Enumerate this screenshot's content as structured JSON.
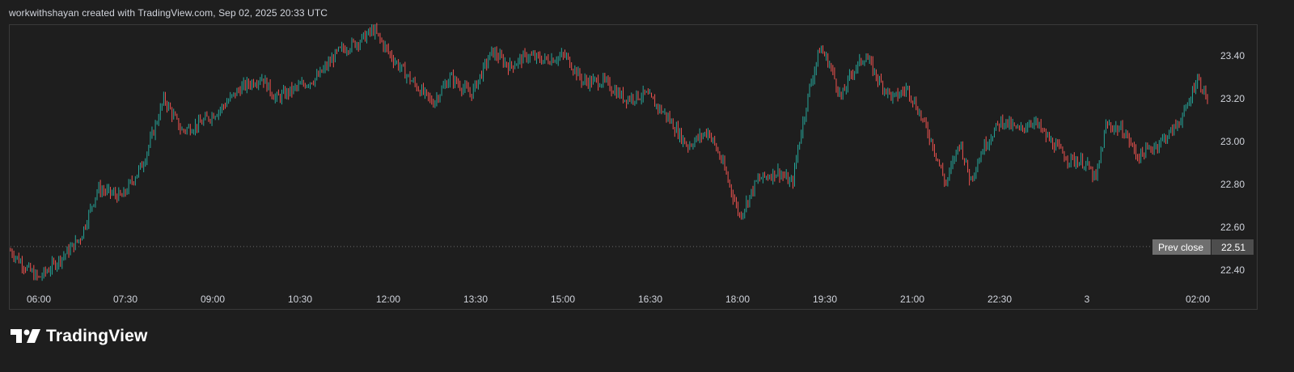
{
  "header": {
    "attribution": "workwithshayan created with TradingView.com, Sep 02, 2025 20:33 UTC"
  },
  "brand": {
    "name": "TradingView"
  },
  "colors": {
    "background": "#1e1e1e",
    "up": "#26a69a",
    "down": "#ef5350",
    "prev_close_line": "#6b6b6b",
    "prev_close_badge": "#6f6f6f"
  },
  "chart_data": {
    "type": "candlestick",
    "x_tick_labels": [
      "06:00",
      "07:30",
      "09:00",
      "10:30",
      "12:00",
      "13:30",
      "15:00",
      "16:30",
      "18:00",
      "19:30",
      "21:00",
      "22:30",
      "3",
      "02:00"
    ],
    "y_tick_labels": [
      "23.40",
      "23.20",
      "23.00",
      "22.80",
      "22.60",
      "22.40"
    ],
    "y_ticks": [
      23.4,
      23.2,
      23.0,
      22.8,
      22.6,
      22.4
    ],
    "ylim": [
      22.34,
      23.55
    ],
    "prev_close": {
      "label": "Prev close",
      "value": 22.51,
      "value_text": "22.51"
    },
    "price_path": [
      [
        0,
        22.49
      ],
      [
        0.4,
        22.42
      ],
      [
        0.8,
        22.36
      ],
      [
        1.2,
        22.42
      ],
      [
        1.6,
        22.48
      ],
      [
        2.0,
        22.55
      ],
      [
        2.5,
        22.78
      ],
      [
        3.2,
        22.74
      ],
      [
        3.8,
        22.9
      ],
      [
        4.4,
        23.2
      ],
      [
        4.9,
        23.05
      ],
      [
        5.4,
        23.08
      ],
      [
        6.0,
        23.15
      ],
      [
        6.6,
        23.25
      ],
      [
        7.2,
        23.3
      ],
      [
        7.6,
        23.2
      ],
      [
        8.2,
        23.25
      ],
      [
        8.8,
        23.3
      ],
      [
        9.4,
        23.42
      ],
      [
        10.0,
        23.47
      ],
      [
        10.4,
        23.52
      ],
      [
        10.9,
        23.4
      ],
      [
        11.5,
        23.28
      ],
      [
        12.1,
        23.18
      ],
      [
        12.6,
        23.3
      ],
      [
        13.2,
        23.22
      ],
      [
        13.8,
        23.42
      ],
      [
        14.3,
        23.35
      ],
      [
        14.8,
        23.4
      ],
      [
        15.3,
        23.38
      ],
      [
        15.9,
        23.4
      ],
      [
        16.4,
        23.28
      ],
      [
        17.0,
        23.28
      ],
      [
        17.6,
        23.2
      ],
      [
        18.2,
        23.22
      ],
      [
        18.8,
        23.12
      ],
      [
        19.4,
        22.98
      ],
      [
        20.0,
        23.05
      ],
      [
        20.4,
        22.9
      ],
      [
        20.9,
        22.65
      ],
      [
        21.4,
        22.82
      ],
      [
        22.0,
        22.86
      ],
      [
        22.4,
        22.8
      ],
      [
        22.6,
        23.0
      ],
      [
        22.9,
        23.25
      ],
      [
        23.2,
        23.44
      ],
      [
        23.5,
        23.35
      ],
      [
        23.8,
        23.2
      ],
      [
        24.1,
        23.32
      ],
      [
        24.5,
        23.4
      ],
      [
        24.9,
        23.28
      ],
      [
        25.3,
        23.2
      ],
      [
        25.7,
        23.25
      ],
      [
        26.0,
        23.15
      ],
      [
        26.4,
        23.0
      ],
      [
        26.8,
        22.8
      ],
      [
        27.2,
        23.0
      ],
      [
        27.5,
        22.82
      ],
      [
        27.9,
        22.98
      ],
      [
        28.4,
        23.1
      ],
      [
        28.9,
        23.05
      ],
      [
        29.3,
        23.1
      ],
      [
        29.8,
        23.0
      ],
      [
        30.3,
        22.92
      ],
      [
        30.8,
        22.9
      ],
      [
        31.1,
        22.82
      ],
      [
        31.4,
        23.08
      ],
      [
        31.9,
        23.05
      ],
      [
        32.3,
        22.93
      ],
      [
        32.8,
        22.98
      ],
      [
        33.3,
        23.05
      ],
      [
        33.7,
        23.15
      ],
      [
        34.0,
        23.3
      ],
      [
        34.3,
        23.2
      ]
    ],
    "candle_count": 720
  }
}
